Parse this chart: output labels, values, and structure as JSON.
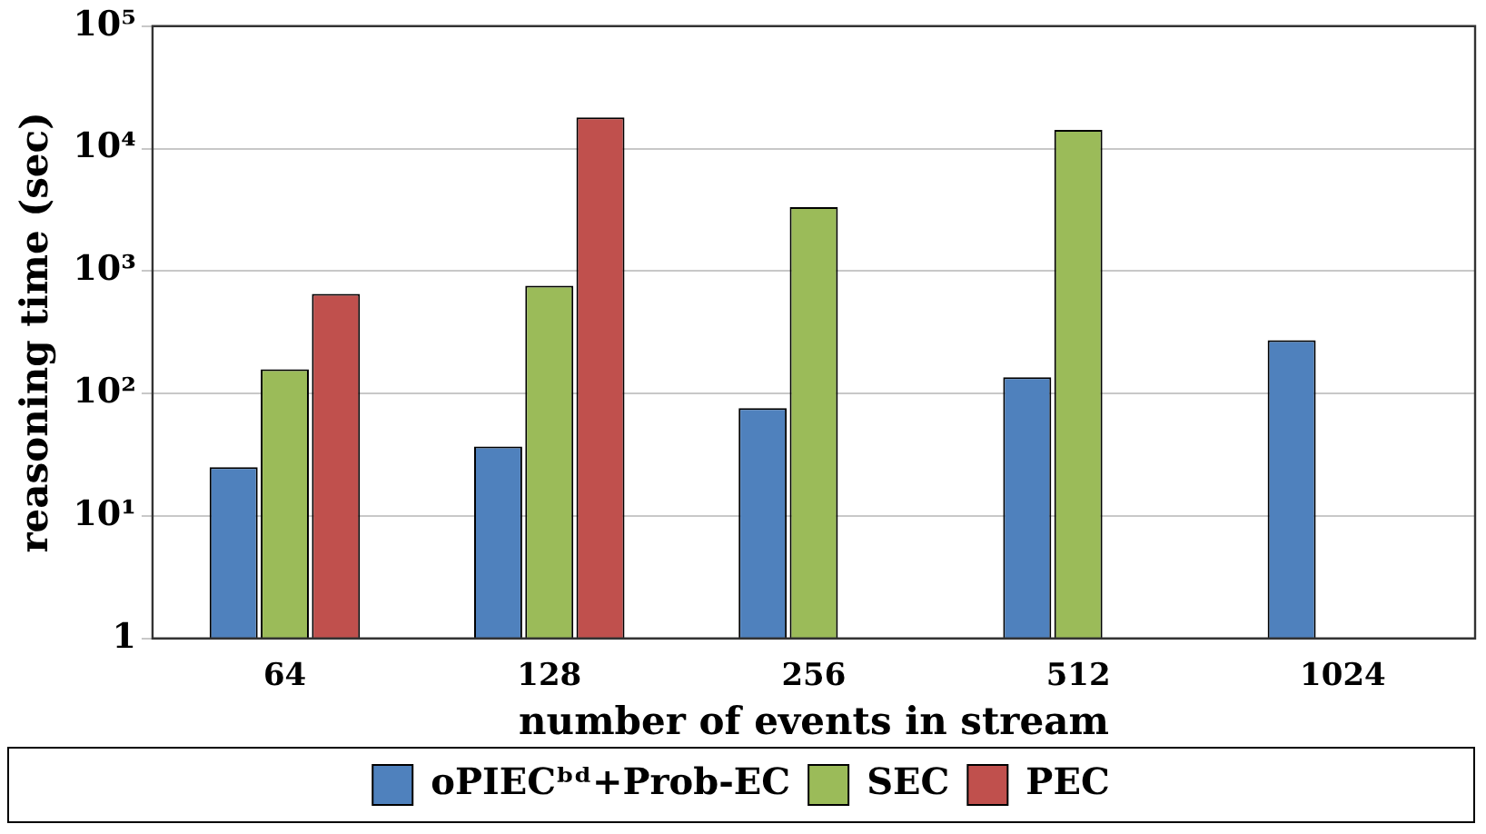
{
  "chart_data": {
    "type": "bar",
    "xlabel": "number of events in stream",
    "ylabel": "reasoning time (sec)",
    "categories": [
      "64",
      "128",
      "256",
      "512",
      "1024"
    ],
    "series": [
      {
        "name": "oPIECᵇᵈ+Prob-EC",
        "color": "#4f81bd",
        "values": [
          25,
          37,
          76,
          136,
          272
        ]
      },
      {
        "name": "SEC",
        "color": "#9bbb59",
        "values": [
          158,
          760,
          3330,
          14200,
          null
        ]
      },
      {
        "name": "PEC",
        "color": "#c0504d",
        "values": [
          650,
          18000,
          null,
          null,
          null
        ]
      }
    ],
    "log": "y",
    "ylim": [
      1,
      100000
    ],
    "yticks": [
      1,
      {
        "value": 10,
        "label": "10¹"
      },
      {
        "value": 100,
        "label": "10²"
      },
      {
        "value": 1000,
        "label": "10³"
      },
      {
        "value": 10000,
        "label": "10⁴"
      },
      {
        "value": 100000,
        "label": "10⁵"
      }
    ],
    "grid": "y",
    "legend": "bottom"
  }
}
